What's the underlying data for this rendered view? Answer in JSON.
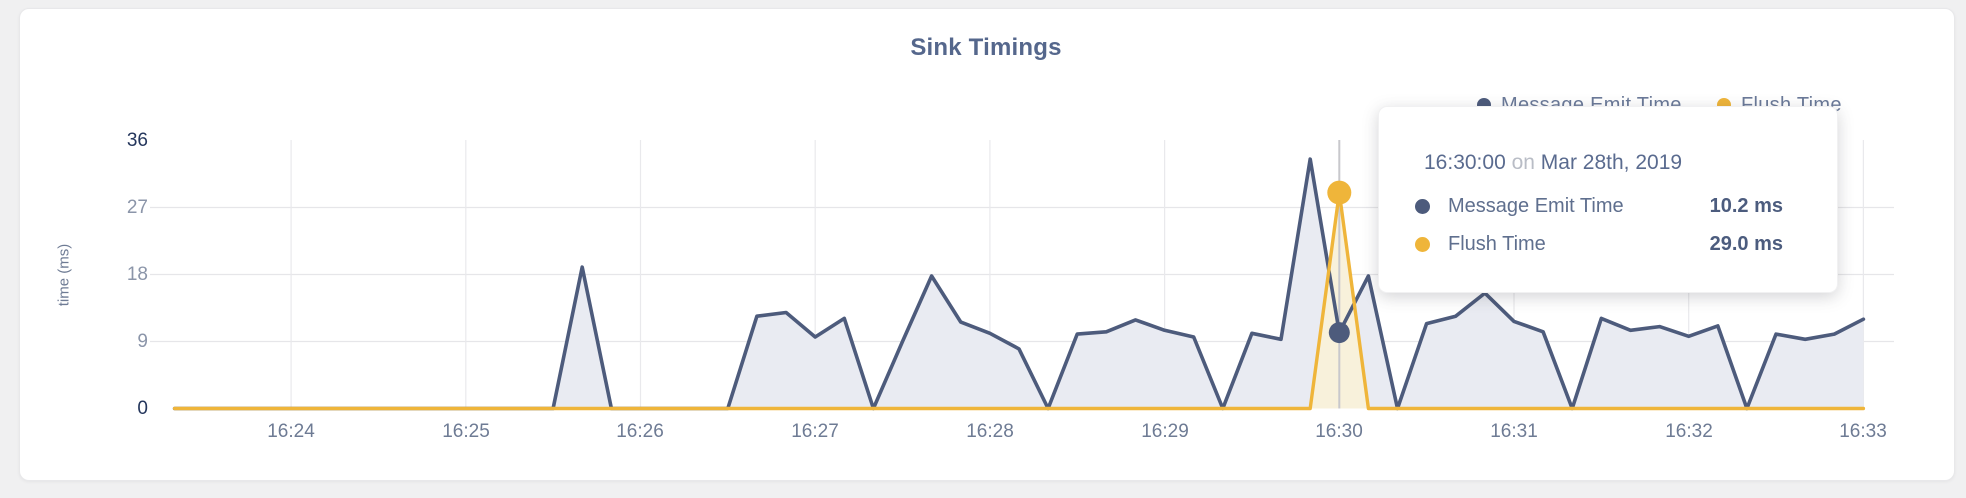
{
  "colors": {
    "page_background": "#f0f0f1",
    "card_background": "#ffffff",
    "title": "#55678c",
    "series_emit": "#4d5b7c",
    "series_emit_fill": "#e9ebf2",
    "series_flush": "#efb53a",
    "series_flush_fill": "#f8f1db",
    "crosshair": "#c8c8cc"
  },
  "tooltip": {
    "time": "16:30:00",
    "connector": "on",
    "date": "Mar 28th, 2019",
    "rows": [
      {
        "label": "Message Emit Time",
        "value": "10.2 ms",
        "color": "#4d5b7c"
      },
      {
        "label": "Flush Time",
        "value": "29.0 ms",
        "color": "#efb53a"
      }
    ]
  },
  "chart_data": {
    "type": "area",
    "title": "Sink Timings",
    "xlabel": "",
    "ylabel": "time (ms)",
    "ylim": [
      0,
      36
    ],
    "y_ticks": [
      36,
      27,
      18,
      9,
      0
    ],
    "y_gridlines": [
      27,
      18,
      9
    ],
    "x_ticks": [
      "16:24",
      "16:25",
      "16:26",
      "16:27",
      "16:28",
      "16:29",
      "16:30",
      "16:31",
      "16:32",
      "16:33"
    ],
    "x_start_time": "16:23:20",
    "x_step_seconds": 10,
    "grid": "both",
    "legend_position": "top-right",
    "series": [
      {
        "name": "Message Emit Time",
        "color": "#4d5b7c",
        "fill": "#e9ebf2",
        "values": [
          0,
          0,
          0,
          0,
          0,
          0,
          0,
          0,
          0,
          0,
          0,
          0,
          0,
          0,
          19,
          0,
          0,
          0,
          0,
          0,
          12.4,
          12.9,
          9.6,
          12.1,
          0,
          9,
          17.8,
          11.6,
          10.1,
          8,
          0,
          10,
          10.3,
          11.9,
          10.5,
          9.6,
          0,
          10.1,
          9.3,
          33.5,
          10.2,
          17.8,
          0,
          11.4,
          12.4,
          15.5,
          11.7,
          10.3,
          0,
          12.1,
          10.5,
          11,
          9.7,
          11.1,
          0,
          10,
          9.3,
          10,
          12
        ]
      },
      {
        "name": "Flush Time",
        "color": "#efb53a",
        "fill": "#f8f1db",
        "values": [
          0,
          0,
          0,
          0,
          0,
          0,
          0,
          0,
          0,
          0,
          0,
          0,
          0,
          0,
          0,
          0,
          0,
          0,
          0,
          0,
          0,
          0,
          0,
          0,
          0,
          0,
          0,
          0,
          0,
          0,
          0,
          0,
          0,
          0,
          0,
          0,
          0,
          0,
          0,
          0,
          29,
          0,
          0,
          0,
          0,
          0,
          0,
          0,
          0,
          0,
          0,
          0,
          0,
          0,
          0,
          0,
          0,
          0,
          0
        ]
      }
    ],
    "hover": {
      "time_label": "16:30:00",
      "index": 40,
      "values": [
        10.2,
        29.0
      ]
    }
  }
}
